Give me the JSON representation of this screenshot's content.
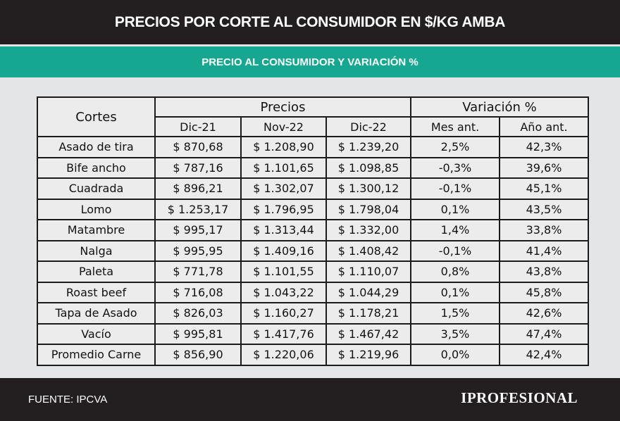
{
  "header": {
    "title": "PRECIOS POR CORTE AL CONSUMIDOR EN $/KG AMBA",
    "subtitle": "PRECIO AL CONSUMIDOR Y VARIACIÓN %"
  },
  "footer": {
    "source": "FUENTE: IPCVA",
    "logo": "IPROFESIONAL"
  },
  "colors": {
    "dark": "#231f20",
    "teal": "#15a78f",
    "background": "#e4e5e6"
  },
  "chart_data": {
    "type": "table",
    "title": "PRECIOS POR CORTE AL CONSUMIDOR EN $/KG AMBA",
    "group_headers": [
      "Cortes",
      "Precios",
      "Variación %"
    ],
    "columns": [
      "Dic-21",
      "Nov-22",
      "Dic-22",
      "Mes ant.",
      "Año ant."
    ],
    "rows": [
      [
        "Asado de tira",
        "$ 870,68",
        "$ 1.208,90",
        "$ 1.239,20",
        "2,5%",
        "42,3%"
      ],
      [
        "Bife ancho",
        "$ 787,16",
        "$ 1.101,65",
        "$ 1.098,85",
        "-0,3%",
        "39,6%"
      ],
      [
        "Cuadrada",
        "$ 896,21",
        "$ 1.302,07",
        "$ 1.300,12",
        "-0,1%",
        "45,1%"
      ],
      [
        "Lomo",
        "$ 1.253,17",
        "$ 1.796,95",
        "$ 1.798,04",
        "0,1%",
        "43,5%"
      ],
      [
        "Matambre",
        "$ 995,17",
        "$ 1.313,44",
        "$ 1.332,00",
        "1,4%",
        "33,8%"
      ],
      [
        "Nalga",
        "$ 995,95",
        "$ 1.409,16",
        "$ 1.408,42",
        "-0,1%",
        "41,4%"
      ],
      [
        "Paleta",
        "$ 771,78",
        "$ 1.101,55",
        "$ 1.110,07",
        "0,8%",
        "43,8%"
      ],
      [
        "Roast beef",
        "$ 716,08",
        "$ 1.043,22",
        "$ 1.044,29",
        "0,1%",
        "45,8%"
      ],
      [
        "Tapa de Asado",
        "$ 826,03",
        "$ 1.160,27",
        "$ 1.178,21",
        "1,5%",
        "42,6%"
      ],
      [
        "Vacío",
        "$ 995,81",
        "$ 1.417,76",
        "$ 1.467,42",
        "3,5%",
        "47,4%"
      ],
      [
        "Promedio Carne",
        "$ 856,90",
        "$ 1.220,06",
        "$ 1.219,96",
        "0,0%",
        "42,4%"
      ]
    ]
  }
}
